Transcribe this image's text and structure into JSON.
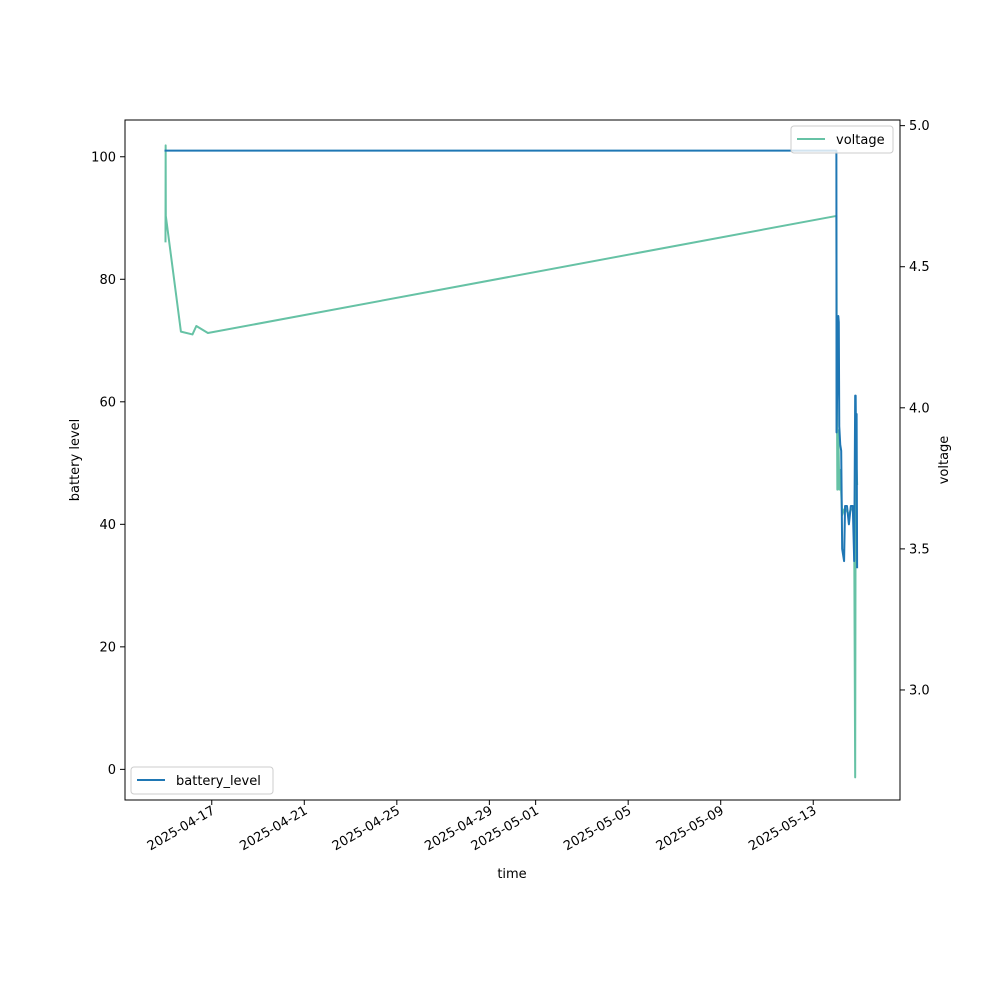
{
  "chart_data": {
    "type": "line",
    "title": "",
    "xlabel": "time",
    "ylabel_left": "battery level",
    "ylabel_right": "voltage",
    "xlim": [
      "2025-04-13T06:00",
      "2025-05-16T18:00"
    ],
    "ylim_left": [
      -5,
      106
    ],
    "ylim_right": [
      2.61,
      5.02
    ],
    "x_ticks": [
      "2025-04-17",
      "2025-04-21",
      "2025-04-25",
      "2025-04-29",
      "2025-05-01",
      "2025-05-05",
      "2025-05-09",
      "2025-05-13"
    ],
    "y_ticks_left": [
      0,
      20,
      40,
      60,
      80,
      100
    ],
    "y_ticks_right": [
      3.0,
      3.5,
      4.0,
      4.5,
      5.0
    ],
    "y_tick_labels_right": [
      "3.0",
      "3.5",
      "4.0",
      "4.5",
      "5.0"
    ],
    "grid": false,
    "series": [
      {
        "name": "battery_level",
        "axis": "left",
        "color": "#1f77b4",
        "legend": "bottom-left",
        "points": [
          [
            "2025-04-15T00:00",
            101
          ],
          [
            "2025-05-14T00:00",
            101
          ],
          [
            "2025-05-14T00:05",
            86
          ],
          [
            "2025-05-14T00:10",
            55
          ],
          [
            "2025-05-14T02:00",
            74
          ],
          [
            "2025-05-14T02:30",
            73
          ],
          [
            "2025-05-14T03:00",
            56
          ],
          [
            "2025-05-14T04:00",
            53
          ],
          [
            "2025-05-14T05:00",
            52
          ],
          [
            "2025-05-14T06:00",
            36
          ],
          [
            "2025-05-14T08:00",
            34
          ],
          [
            "2025-05-14T09:00",
            43
          ],
          [
            "2025-05-14T11:00",
            43
          ],
          [
            "2025-05-14T13:00",
            40
          ],
          [
            "2025-05-14T15:00",
            43
          ],
          [
            "2025-05-14T17:00",
            43
          ],
          [
            "2025-05-14T18:30",
            34
          ],
          [
            "2025-05-14T19:30",
            61
          ],
          [
            "2025-05-14T20:00",
            61
          ],
          [
            "2025-05-14T20:30",
            52
          ],
          [
            "2025-05-14T21:00",
            58
          ],
          [
            "2025-05-14T21:30",
            33
          ]
        ]
      },
      {
        "name": "voltage",
        "axis": "right",
        "color": "#66c2a5",
        "legend": "top-right",
        "points": [
          [
            "2025-04-15T00:00",
            4.59
          ],
          [
            "2025-04-15T00:10",
            4.93
          ],
          [
            "2025-04-15T00:20",
            4.68
          ],
          [
            "2025-04-15T16:00",
            4.27
          ],
          [
            "2025-04-16T04:00",
            4.26
          ],
          [
            "2025-04-16T08:00",
            4.29
          ],
          [
            "2025-04-16T20:00",
            4.265
          ],
          [
            "2025-05-14T00:00",
            4.68
          ],
          [
            "2025-05-14T00:20",
            4.28
          ],
          [
            "2025-05-14T01:00",
            3.71
          ],
          [
            "2025-05-14T02:00",
            3.92
          ],
          [
            "2025-05-14T03:00",
            3.71
          ],
          [
            "2025-05-14T04:00",
            3.78
          ],
          [
            "2025-05-14T06:00",
            3.62
          ],
          [
            "2025-05-14T08:00",
            3.64
          ],
          [
            "2025-05-14T10:00",
            3.64
          ],
          [
            "2025-05-14T13:00",
            3.62
          ],
          [
            "2025-05-14T15:00",
            3.64
          ],
          [
            "2025-05-14T17:30",
            3.64
          ],
          [
            "2025-05-14T18:30",
            3.55
          ],
          [
            "2025-05-14T19:30",
            2.69
          ],
          [
            "2025-05-14T20:00",
            3.81
          ],
          [
            "2025-05-14T20:30",
            3.6
          ],
          [
            "2025-05-14T21:00",
            3.78
          ],
          [
            "2025-05-14T21:30",
            3.73
          ]
        ]
      }
    ]
  }
}
